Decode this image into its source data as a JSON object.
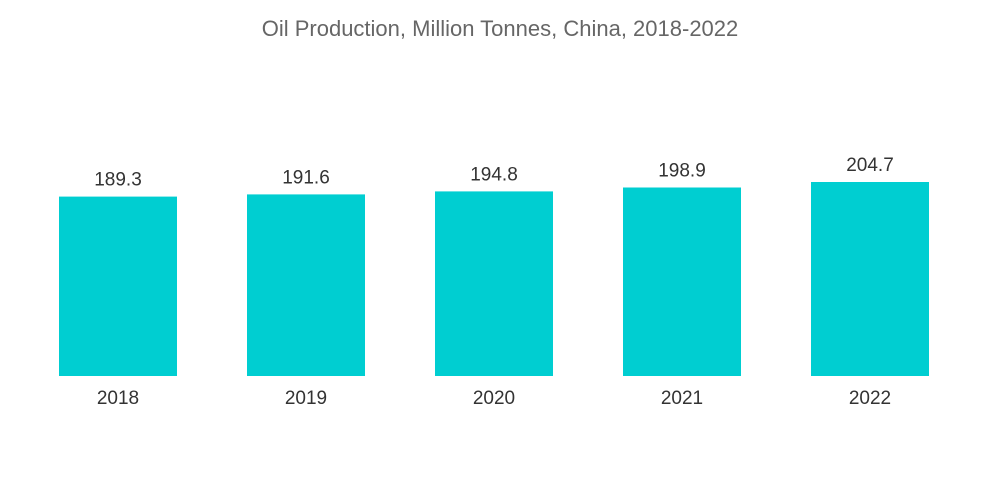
{
  "chart_data": {
    "type": "bar",
    "title": "Oil Production, Million Tonnes, China, 2018-2022",
    "categories": [
      "2018",
      "2019",
      "2020",
      "2021",
      "2022"
    ],
    "values": [
      189.3,
      191.6,
      194.8,
      198.9,
      204.7
    ],
    "value_labels": [
      "189.3",
      "191.6",
      "194.8",
      "198.9",
      "204.7"
    ],
    "xlabel": "",
    "ylabel": "",
    "ylim": [
      0,
      204.7
    ],
    "grid": false,
    "legend": "none",
    "bar_color": "#00CED1"
  }
}
